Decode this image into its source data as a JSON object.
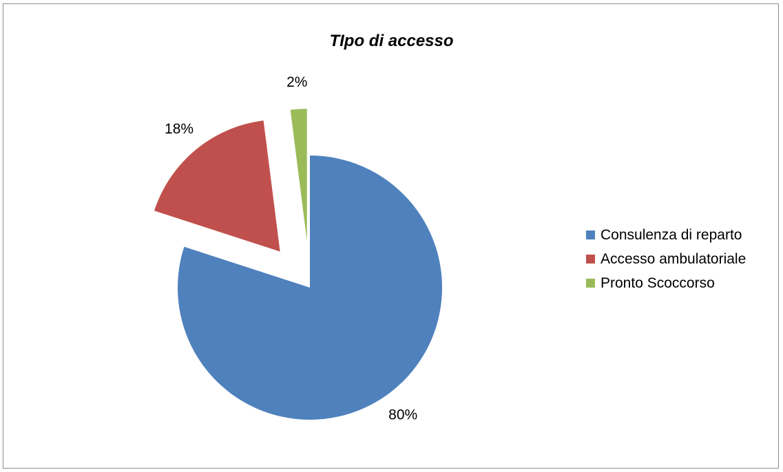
{
  "chart_data": {
    "type": "pie",
    "title": "TIpo di accesso",
    "slices": [
      {
        "label": "Consulenza di reparto",
        "value": 80,
        "data_label": "80%",
        "color": "#4F81BD",
        "exploded": false
      },
      {
        "label": "Accesso ambulatoriale",
        "value": 18,
        "data_label": "18%",
        "color": "#C0504D",
        "exploded": true
      },
      {
        "label": "Pronto Scoccorso",
        "value": 2,
        "data_label": "2%",
        "color": "#9BBB59",
        "exploded": true
      }
    ],
    "legend_position": "right"
  }
}
